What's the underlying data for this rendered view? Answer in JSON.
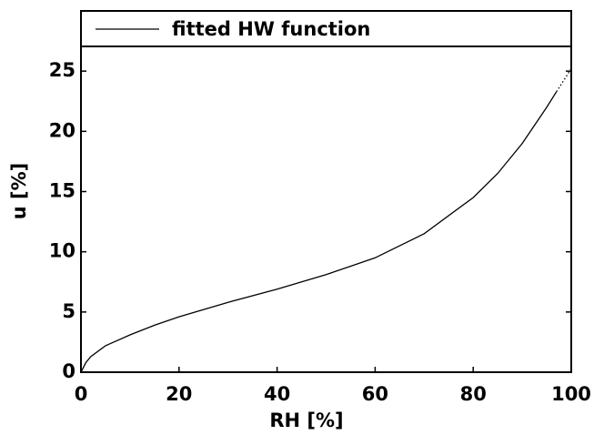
{
  "chart_data": {
    "type": "line",
    "xlabel": "RH [%]",
    "ylabel": "u [%]",
    "x": [
      0,
      1,
      2,
      5,
      10,
      15,
      20,
      30,
      40,
      50,
      60,
      70,
      80,
      85,
      90,
      95,
      97,
      100
    ],
    "series": [
      {
        "name": "fitted HW function",
        "color": "#000000",
        "style": "solid",
        "values": [
          0,
          0.8,
          1.3,
          2.2,
          3.1,
          3.9,
          4.6,
          5.8,
          6.9,
          8.1,
          9.5,
          11.5,
          14.5,
          16.5,
          19,
          22,
          23.3,
          null
        ]
      },
      {
        "color": "#000000",
        "style": "dotted",
        "values": [
          null,
          null,
          null,
          null,
          null,
          null,
          null,
          null,
          null,
          null,
          null,
          null,
          null,
          null,
          null,
          null,
          23.3,
          25.2
        ]
      }
    ],
    "xlim": [
      0,
      100
    ],
    "xticks": [
      0,
      20,
      40,
      60,
      80,
      100
    ],
    "ylim": [
      0,
      30
    ],
    "yticks": [
      0,
      5,
      10,
      15,
      20,
      25
    ],
    "legend": "top"
  }
}
